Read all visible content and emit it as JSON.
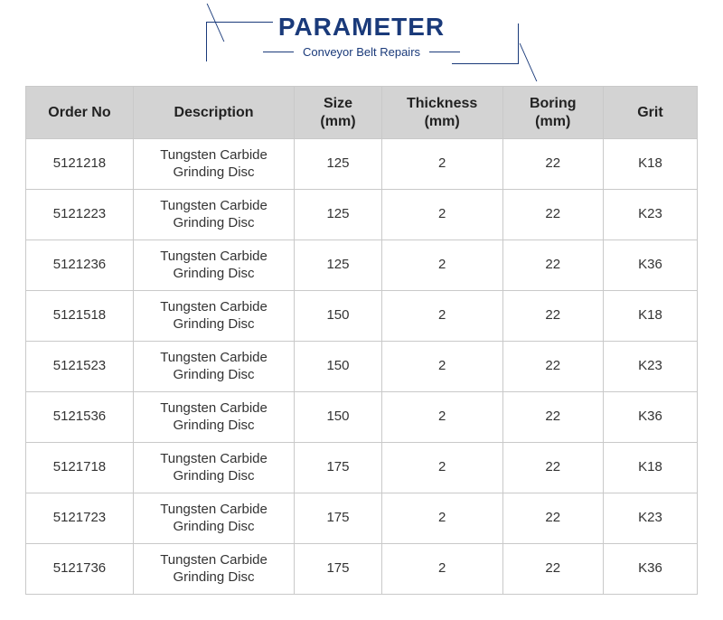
{
  "header": {
    "title": "PARAMETER",
    "subtitle": "Conveyor Belt Repairs",
    "accent_color": "#1a3a7a"
  },
  "table": {
    "header_bg": "#d3d3d3",
    "border_color": "#c9c9c9",
    "columns": [
      {
        "label": "Order No",
        "sublabel": ""
      },
      {
        "label": "Description",
        "sublabel": ""
      },
      {
        "label": "Size",
        "sublabel": "(mm)"
      },
      {
        "label": "Thickness",
        "sublabel": "(mm)"
      },
      {
        "label": "Boring",
        "sublabel": "(mm)"
      },
      {
        "label": "Grit",
        "sublabel": ""
      }
    ],
    "rows": [
      {
        "order_no": "5121218",
        "description": "Tungsten Carbide Grinding Disc",
        "size": "125",
        "thickness": "2",
        "boring": "22",
        "grit": "K18"
      },
      {
        "order_no": "5121223",
        "description": "Tungsten Carbide Grinding Disc",
        "size": "125",
        "thickness": "2",
        "boring": "22",
        "grit": "K23"
      },
      {
        "order_no": "5121236",
        "description": "Tungsten Carbide Grinding Disc",
        "size": "125",
        "thickness": "2",
        "boring": "22",
        "grit": "K36"
      },
      {
        "order_no": "5121518",
        "description": "Tungsten Carbide Grinding Disc",
        "size": "150",
        "thickness": "2",
        "boring": "22",
        "grit": "K18"
      },
      {
        "order_no": "5121523",
        "description": "Tungsten Carbide Grinding Disc",
        "size": "150",
        "thickness": "2",
        "boring": "22",
        "grit": "K23"
      },
      {
        "order_no": "5121536",
        "description": "Tungsten Carbide Grinding Disc",
        "size": "150",
        "thickness": "2",
        "boring": "22",
        "grit": "K36"
      },
      {
        "order_no": "5121718",
        "description": "Tungsten Carbide Grinding Disc",
        "size": "175",
        "thickness": "2",
        "boring": "22",
        "grit": "K18"
      },
      {
        "order_no": "5121723",
        "description": "Tungsten Carbide Grinding Disc",
        "size": "175",
        "thickness": "2",
        "boring": "22",
        "grit": "K23"
      },
      {
        "order_no": "5121736",
        "description": "Tungsten Carbide Grinding Disc",
        "size": "175",
        "thickness": "2",
        "boring": "22",
        "grit": "K36"
      }
    ]
  }
}
